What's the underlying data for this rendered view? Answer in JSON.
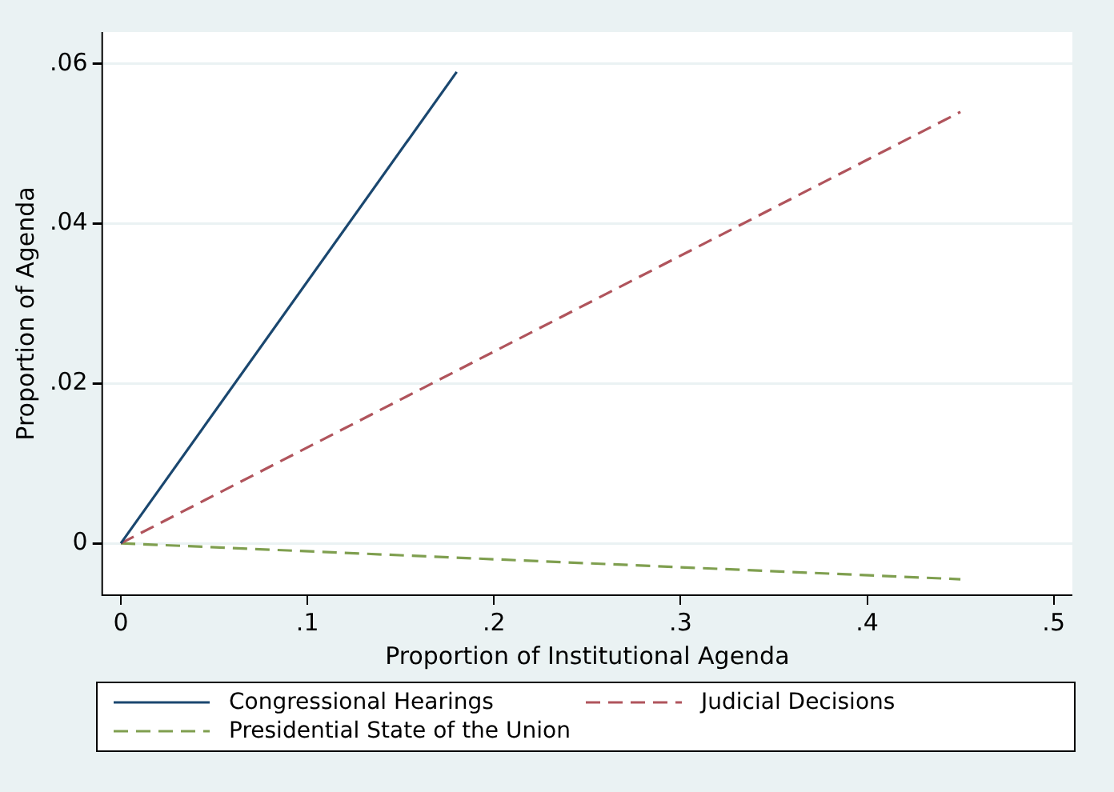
{
  "chart_data": {
    "type": "line",
    "xlabel": "Proportion of Institutional Agenda",
    "ylabel": "Proportion of Agenda",
    "xlim": [
      -0.01,
      0.51
    ],
    "ylim": [
      -0.0065,
      0.064
    ],
    "xticks": [
      0,
      {
        "value": 0.1,
        "label": ".1"
      },
      {
        "value": 0.2,
        "label": ".2"
      },
      {
        "value": 0.3,
        "label": ".3"
      },
      {
        "value": 0.4,
        "label": ".4"
      },
      {
        "value": 0.5,
        "label": ".5"
      }
    ],
    "yticks": [
      0,
      {
        "value": 0.02,
        "label": ".02"
      },
      {
        "value": 0.04,
        "label": ".04"
      },
      {
        "value": 0.06,
        "label": ".06"
      }
    ],
    "grid": "y",
    "legend": "bottom",
    "marker": "none",
    "series": [
      {
        "name": "Congressional Hearings",
        "color": "#1a476f",
        "line_style": "solid",
        "x": [
          0,
          0.18
        ],
        "values": [
          0,
          0.059
        ]
      },
      {
        "name": "Judicial Decisions",
        "color": "#b0545c",
        "line_style": "dashed",
        "x": [
          0,
          0.45
        ],
        "values": [
          0,
          0.054
        ]
      },
      {
        "name": "Presidential State of the Union",
        "color": "#7f9f4f",
        "line_style": "dashed",
        "x": [
          0,
          0.45
        ],
        "values": [
          0,
          -0.0045
        ]
      }
    ]
  }
}
